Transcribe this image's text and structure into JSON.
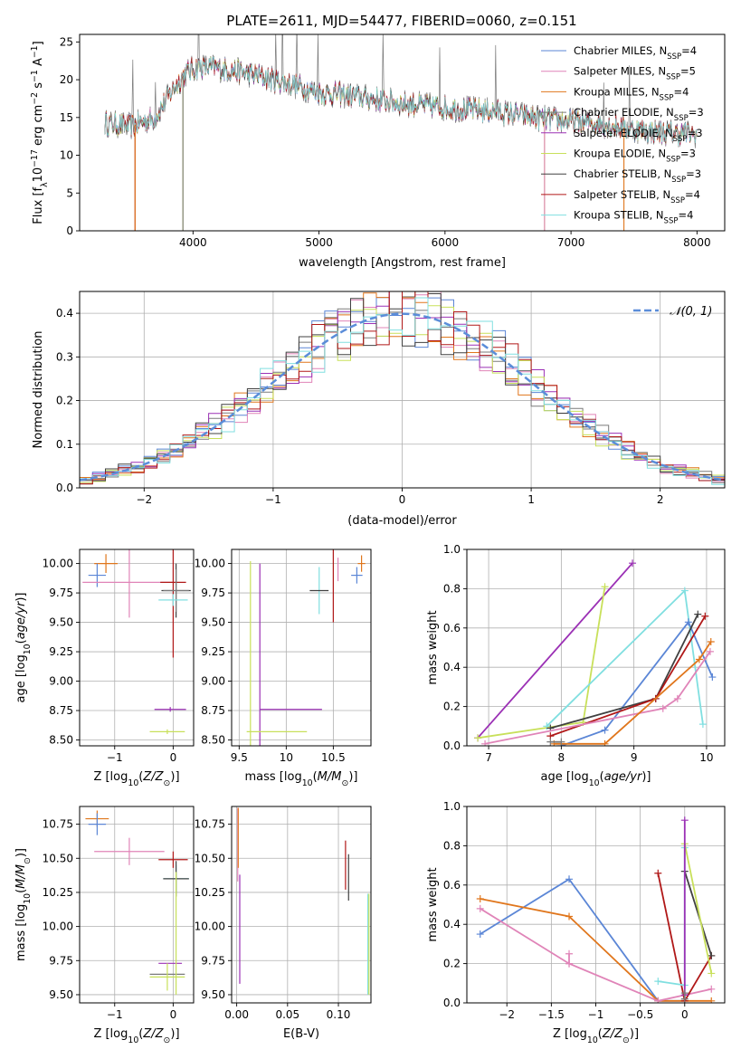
{
  "figure": {
    "title": "PLATE=2611, MJD=54477, FIBERID=0060, z=0.151"
  },
  "colors": {
    "Chabrier MILES": "#5b86d6",
    "Salpeter MILES": "#e084b8",
    "Kroupa MILES": "#e0761c",
    "Chabrier ELODIE": "#7a7a7a",
    "Salpeter ELODIE": "#9b30b5",
    "Kroupa ELODIE": "#c8e05a",
    "Chabrier STELIB": "#404040",
    "Salpeter STELIB": "#b01818",
    "Kroupa STELIB": "#80dfe0",
    "normal_curve": "#5b8dd9",
    "grid": "#b0b0b0"
  },
  "chart_data": [
    {
      "id": "spectrum",
      "type": "line",
      "xlabel": "wavelength [Angstrom, rest frame]",
      "ylabel": "Flux [f_λ10^-17 erg cm^-2 s^-1 A^-1]",
      "xlim": [
        3100,
        8220
      ],
      "ylim": [
        0,
        26
      ],
      "xticks": [
        4000,
        5000,
        6000,
        7000,
        8000
      ],
      "yticks": [
        0,
        5,
        10,
        15,
        20,
        25
      ],
      "grid": false,
      "legend_position": "right",
      "legend": [
        {
          "name": "Chabrier MILES",
          "nssp": "4"
        },
        {
          "name": "Salpeter MILES",
          "nssp": "5"
        },
        {
          "name": "Kroupa MILES",
          "nssp": "4"
        },
        {
          "name": "Chabrier ELODIE",
          "nssp": "3"
        },
        {
          "name": "Salpeter ELODIE",
          "nssp": "3"
        },
        {
          "name": "Kroupa ELODIE",
          "nssp": "3"
        },
        {
          "name": "Chabrier STELIB",
          "nssp": "3"
        },
        {
          "name": "Salpeter STELIB",
          "nssp": "4"
        },
        {
          "name": "Kroupa STELIB",
          "nssp": "4"
        }
      ],
      "continuum": {
        "x": [
          3300,
          3500,
          3700,
          3850,
          3950,
          4050,
          4300,
          4500,
          4800,
          5000,
          5300,
          5600,
          6000,
          6400,
          6800,
          7200,
          7600,
          8000
        ],
        "y": [
          14.3,
          13.8,
          15.0,
          19.0,
          21.0,
          21.8,
          21.3,
          20.6,
          19.3,
          18.3,
          17.8,
          17.0,
          16.3,
          15.8,
          14.8,
          14.2,
          13.2,
          12.8
        ]
      },
      "model_cutoffs": [
        {
          "model": "Salpeter STELIB",
          "x": 3540
        },
        {
          "model": "Kroupa MILES",
          "x": 3540
        },
        {
          "model": "Kroupa ELODIE",
          "x": 3920
        },
        {
          "model": "Chabrier ELODIE",
          "x": 3920
        },
        {
          "model": "Kroupa ELODIE",
          "x": 6790
        },
        {
          "model": "Salpeter MILES",
          "x": 6790
        },
        {
          "model": "Kroupa MILES",
          "x": 7420
        }
      ]
    },
    {
      "id": "residuals",
      "type": "line",
      "xlabel": "(data-model)/error",
      "ylabel": "Normed distribution",
      "xlim": [
        -2.5,
        2.5
      ],
      "ylim": [
        0,
        0.45
      ],
      "xticks": [
        -2,
        -1,
        0,
        1,
        2
      ],
      "yticks": [
        0.0,
        0.1,
        0.2,
        0.3,
        0.4
      ],
      "grid": true,
      "legend_position": "top-right",
      "legend": [
        "𝒩(0, 1)"
      ],
      "curve": {
        "mean": 0,
        "sigma": 1
      },
      "bin_width": 0.1
    },
    {
      "id": "age_vs_Z",
      "type": "scatter",
      "xlabel": "Z [log10(Z/Z⊙)]",
      "ylabel": "age [log10(age/yr)]",
      "xlim": [
        -1.6,
        0.35
      ],
      "ylim": [
        8.45,
        10.12
      ],
      "xticks": [
        -1,
        0
      ],
      "yticks": [
        8.5,
        8.75,
        9.0,
        9.25,
        9.5,
        9.75,
        10.0
      ],
      "grid": true,
      "points": [
        {
          "model": "Kroupa MILES",
          "x": -1.15,
          "y": 10.0,
          "xerr": 0.2,
          "yerr": 0.08
        },
        {
          "model": "Chabrier MILES",
          "x": -1.3,
          "y": 9.9,
          "xerr": 0.15,
          "yerr": 0.1
        },
        {
          "model": "Salpeter MILES",
          "x": -0.75,
          "y": 9.84,
          "xerr": 0.8,
          "yerr": 0.3
        },
        {
          "model": "Salpeter STELIB",
          "x": 0.0,
          "y": 9.84,
          "xerr": 0.22,
          "yerr": 0.64
        },
        {
          "model": "Chabrier STELIB",
          "x": 0.05,
          "y": 9.77,
          "xerr": 0.25,
          "yerr": 0.23
        },
        {
          "model": "Chabrier ELODIE",
          "x": 0.05,
          "y": 9.77,
          "xerr": 0.22,
          "yerr": 0.18
        },
        {
          "model": "Kroupa STELIB",
          "x": 0.0,
          "y": 9.69,
          "xerr": 0.25,
          "yerr": 0.05
        },
        {
          "model": "Salpeter ELODIE",
          "x": -0.05,
          "y": 8.76,
          "xerr": 0.27,
          "yerr": 0.02
        },
        {
          "model": "Kroupa ELODIE",
          "x": -0.1,
          "y": 8.57,
          "xerr": 0.3,
          "yerr": 0.02
        }
      ]
    },
    {
      "id": "age_vs_mass",
      "type": "scatter",
      "xlabel": "mass [log10(M/M⊙)]",
      "ylabel": "",
      "xlim": [
        9.42,
        10.9
      ],
      "ylim": [
        8.45,
        10.12
      ],
      "xticks": [
        9.5,
        10.0,
        10.5
      ],
      "yticks": [
        8.5,
        8.75,
        9.0,
        9.25,
        9.5,
        9.75,
        10.0
      ],
      "grid": true,
      "points": [
        {
          "model": "Salpeter ELODIE",
          "x": 9.72,
          "y": 9.2,
          "xerr": 0.0,
          "yerr": 0.8
        },
        {
          "model": "Kroupa ELODIE",
          "x": 9.62,
          "y": 9.2,
          "xerr": 0.0,
          "yerr": 0.82
        },
        {
          "model": "Salpeter ELODIE",
          "x": 10.05,
          "y": 8.76,
          "xerr": 0.33,
          "yerr": 0.0
        },
        {
          "model": "Kroupa ELODIE",
          "x": 9.9,
          "y": 8.57,
          "xerr": 0.32,
          "yerr": 0.0
        },
        {
          "model": "Kroupa STELIB",
          "x": 10.35,
          "y": 9.77,
          "xerr": 0.0,
          "yerr": 0.2
        },
        {
          "model": "Chabrier STELIB",
          "x": 10.35,
          "y": 9.77,
          "xerr": 0.1,
          "yerr": 0.0
        },
        {
          "model": "Salpeter STELIB",
          "x": 10.5,
          "y": 9.84,
          "xerr": 0.0,
          "yerr": 0.34
        },
        {
          "model": "Salpeter MILES",
          "x": 10.55,
          "y": 9.95,
          "xerr": 0.0,
          "yerr": 0.1
        },
        {
          "model": "Chabrier MILES",
          "x": 10.75,
          "y": 9.9,
          "xerr": 0.06,
          "yerr": 0.07
        },
        {
          "model": "Kroupa MILES",
          "x": 10.8,
          "y": 10.0,
          "xerr": 0.04,
          "yerr": 0.07
        }
      ]
    },
    {
      "id": "weight_vs_age",
      "type": "line",
      "xlabel": "age [log10(age/yr)]",
      "ylabel": "mass weight",
      "xlim": [
        6.7,
        10.25
      ],
      "ylim": [
        0,
        1.0
      ],
      "xticks": [
        7,
        8,
        9,
        10
      ],
      "yticks": [
        0.0,
        0.2,
        0.4,
        0.6,
        0.8,
        1.0
      ],
      "grid": true,
      "series": [
        {
          "model": "Salpeter ELODIE",
          "x": [
            6.85,
            8.98
          ],
          "y": [
            0.04,
            0.93
          ]
        },
        {
          "model": "Kroupa ELODIE",
          "x": [
            6.85,
            8.3,
            8.6
          ],
          "y": [
            0.04,
            0.12,
            0.81
          ]
        },
        {
          "model": "Kroupa STELIB",
          "x": [
            7.8,
            9.7,
            9.95
          ],
          "y": [
            0.1,
            0.79,
            0.11
          ]
        },
        {
          "model": "Chabrier MILES",
          "x": [
            8.0,
            8.6,
            9.75,
            10.08
          ],
          "y": [
            0.0,
            0.08,
            0.63,
            0.35
          ]
        },
        {
          "model": "Chabrier STELIB",
          "x": [
            7.85,
            9.3,
            9.88
          ],
          "y": [
            0.09,
            0.24,
            0.67
          ]
        },
        {
          "model": "Salpeter STELIB",
          "x": [
            7.85,
            9.3,
            9.98
          ],
          "y": [
            0.05,
            0.24,
            0.66
          ]
        },
        {
          "model": "Salpeter MILES",
          "x": [
            6.95,
            9.4,
            9.6,
            10.05
          ],
          "y": [
            0.01,
            0.19,
            0.24,
            0.48
          ]
        },
        {
          "model": "Kroupa MILES",
          "x": [
            7.9,
            8.6,
            9.9,
            10.06
          ],
          "y": [
            0.01,
            0.01,
            0.44,
            0.53
          ]
        },
        {
          "model": "Chabrier ELODIE",
          "x": [
            7.85,
            8.0
          ],
          "y": [
            0.02,
            0.02
          ]
        }
      ]
    },
    {
      "id": "mass_vs_Z",
      "type": "scatter",
      "xlabel": "Z [log10(Z/Z⊙)]",
      "ylabel": "mass [log10(M/M⊙)]",
      "xlim": [
        -1.6,
        0.35
      ],
      "ylim": [
        9.44,
        10.88
      ],
      "xticks": [
        -1,
        0
      ],
      "yticks": [
        9.5,
        9.75,
        10.0,
        10.25,
        10.5,
        10.75
      ],
      "grid": true,
      "points": [
        {
          "model": "Kroupa MILES",
          "x": -1.3,
          "y": 10.79,
          "xerr": 0.2,
          "yerr": 0.06
        },
        {
          "model": "Chabrier MILES",
          "x": -1.3,
          "y": 10.75,
          "xerr": 0.15,
          "yerr": 0.08
        },
        {
          "model": "Salpeter MILES",
          "x": -0.75,
          "y": 10.55,
          "xerr": 0.6,
          "yerr": 0.1
        },
        {
          "model": "Salpeter STELIB",
          "x": 0.0,
          "y": 10.49,
          "xerr": 0.25,
          "yerr": 0.06
        },
        {
          "model": "Kroupa STELIB",
          "x": 0.05,
          "y": 10.35,
          "xerr": 0.22,
          "yerr": 0.1
        },
        {
          "model": "Chabrier STELIB",
          "x": 0.05,
          "y": 10.35,
          "xerr": 0.22,
          "yerr": 0.13
        },
        {
          "model": "Salpeter ELODIE",
          "x": -0.05,
          "y": 9.73,
          "xerr": 0.2,
          "yerr": 0.0
        },
        {
          "model": "Chabrier ELODIE",
          "x": -0.1,
          "y": 9.65,
          "xerr": 0.3,
          "yerr": 0.0
        },
        {
          "model": "Kroupa ELODIE",
          "x": -0.1,
          "y": 9.63,
          "xerr": 0.3,
          "yerr": 0.1
        },
        {
          "model": "Kroupa ELODIE",
          "x": 0.05,
          "y": 9.95,
          "xerr": 0.0,
          "yerr": 0.45
        }
      ]
    },
    {
      "id": "mass_vs_ebv",
      "type": "scatter",
      "xlabel": "E(B-V)",
      "ylabel": "",
      "xlim": [
        -0.005,
        0.132
      ],
      "ylim": [
        9.44,
        10.88
      ],
      "xticks": [
        0.0,
        0.05,
        0.1
      ],
      "xticklabels": [
        "0.00",
        "0.05",
        "0.10"
      ],
      "yticks": [
        9.5,
        9.75,
        10.0,
        10.25,
        10.5,
        10.75
      ],
      "grid": true,
      "points": [
        {
          "model": "Salpeter MILES",
          "x": 0.001,
          "y": 10.6,
          "yerr": 0.27
        },
        {
          "model": "Kroupa MILES",
          "x": 0.0015,
          "y": 10.65,
          "yerr": 0.22
        },
        {
          "model": "Salpeter ELODIE",
          "x": 0.003,
          "y": 9.98,
          "yerr": 0.4
        },
        {
          "model": "Salpeter STELIB",
          "x": 0.107,
          "y": 10.45,
          "yerr": 0.18
        },
        {
          "model": "Chabrier STELIB",
          "x": 0.11,
          "y": 10.36,
          "yerr": 0.17
        },
        {
          "model": "Kroupa STELIB",
          "x": 0.129,
          "y": 9.87,
          "yerr": 0.37
        },
        {
          "model": "Kroupa ELODIE",
          "x": 0.13,
          "y": 9.87,
          "yerr": 0.37
        }
      ]
    },
    {
      "id": "weight_vs_Z",
      "type": "line",
      "xlabel": "Z [log10(Z/Z⊙)]",
      "ylabel": "mass weight",
      "xlim": [
        -2.45,
        0.45
      ],
      "ylim": [
        0,
        1.0
      ],
      "xticks": [
        -2.0,
        -1.5,
        -1.0,
        -0.5,
        0.0
      ],
      "yticks": [
        0.0,
        0.2,
        0.4,
        0.6,
        0.8,
        1.0
      ],
      "grid": true,
      "series": [
        {
          "model": "Chabrier MILES",
          "x": [
            -2.3,
            -1.3,
            -0.3,
            0.0
          ],
          "y": [
            0.35,
            0.63,
            0.01,
            0.01
          ]
        },
        {
          "model": "Kroupa MILES",
          "x": [
            -2.3,
            -1.3,
            -0.3,
            0.3
          ],
          "y": [
            0.53,
            0.44,
            0.01,
            0.01
          ]
        },
        {
          "model": "Salpeter MILES",
          "x": [
            -2.3,
            -1.3,
            -0.3,
            0.3
          ],
          "y": [
            0.48,
            0.2,
            0.01,
            0.07
          ]
        },
        {
          "model": "Salpeter MILES",
          "x": [
            -1.3,
            -1.3
          ],
          "y": [
            0.2,
            0.25
          ]
        },
        {
          "model": "Salpeter STELIB",
          "x": [
            -0.3,
            0.0,
            0.3
          ],
          "y": [
            0.66,
            0.01,
            0.24
          ]
        },
        {
          "model": "Kroupa STELIB",
          "x": [
            -0.3,
            0.0,
            0.0
          ],
          "y": [
            0.11,
            0.09,
            0.79
          ]
        },
        {
          "model": "Chabrier STELIB",
          "x": [
            0.0,
            0.3
          ],
          "y": [
            0.67,
            0.24
          ]
        },
        {
          "model": "Kroupa ELODIE",
          "x": [
            0.0,
            0.3
          ],
          "y": [
            0.81,
            0.15
          ]
        },
        {
          "model": "Salpeter ELODIE",
          "x": [
            0.0,
            0.0
          ],
          "y": [
            0.93,
            0.04
          ]
        },
        {
          "model": "Chabrier ELODIE",
          "x": [
            0.0,
            0.0
          ],
          "y": [
            0.02,
            0.05
          ]
        }
      ]
    }
  ]
}
